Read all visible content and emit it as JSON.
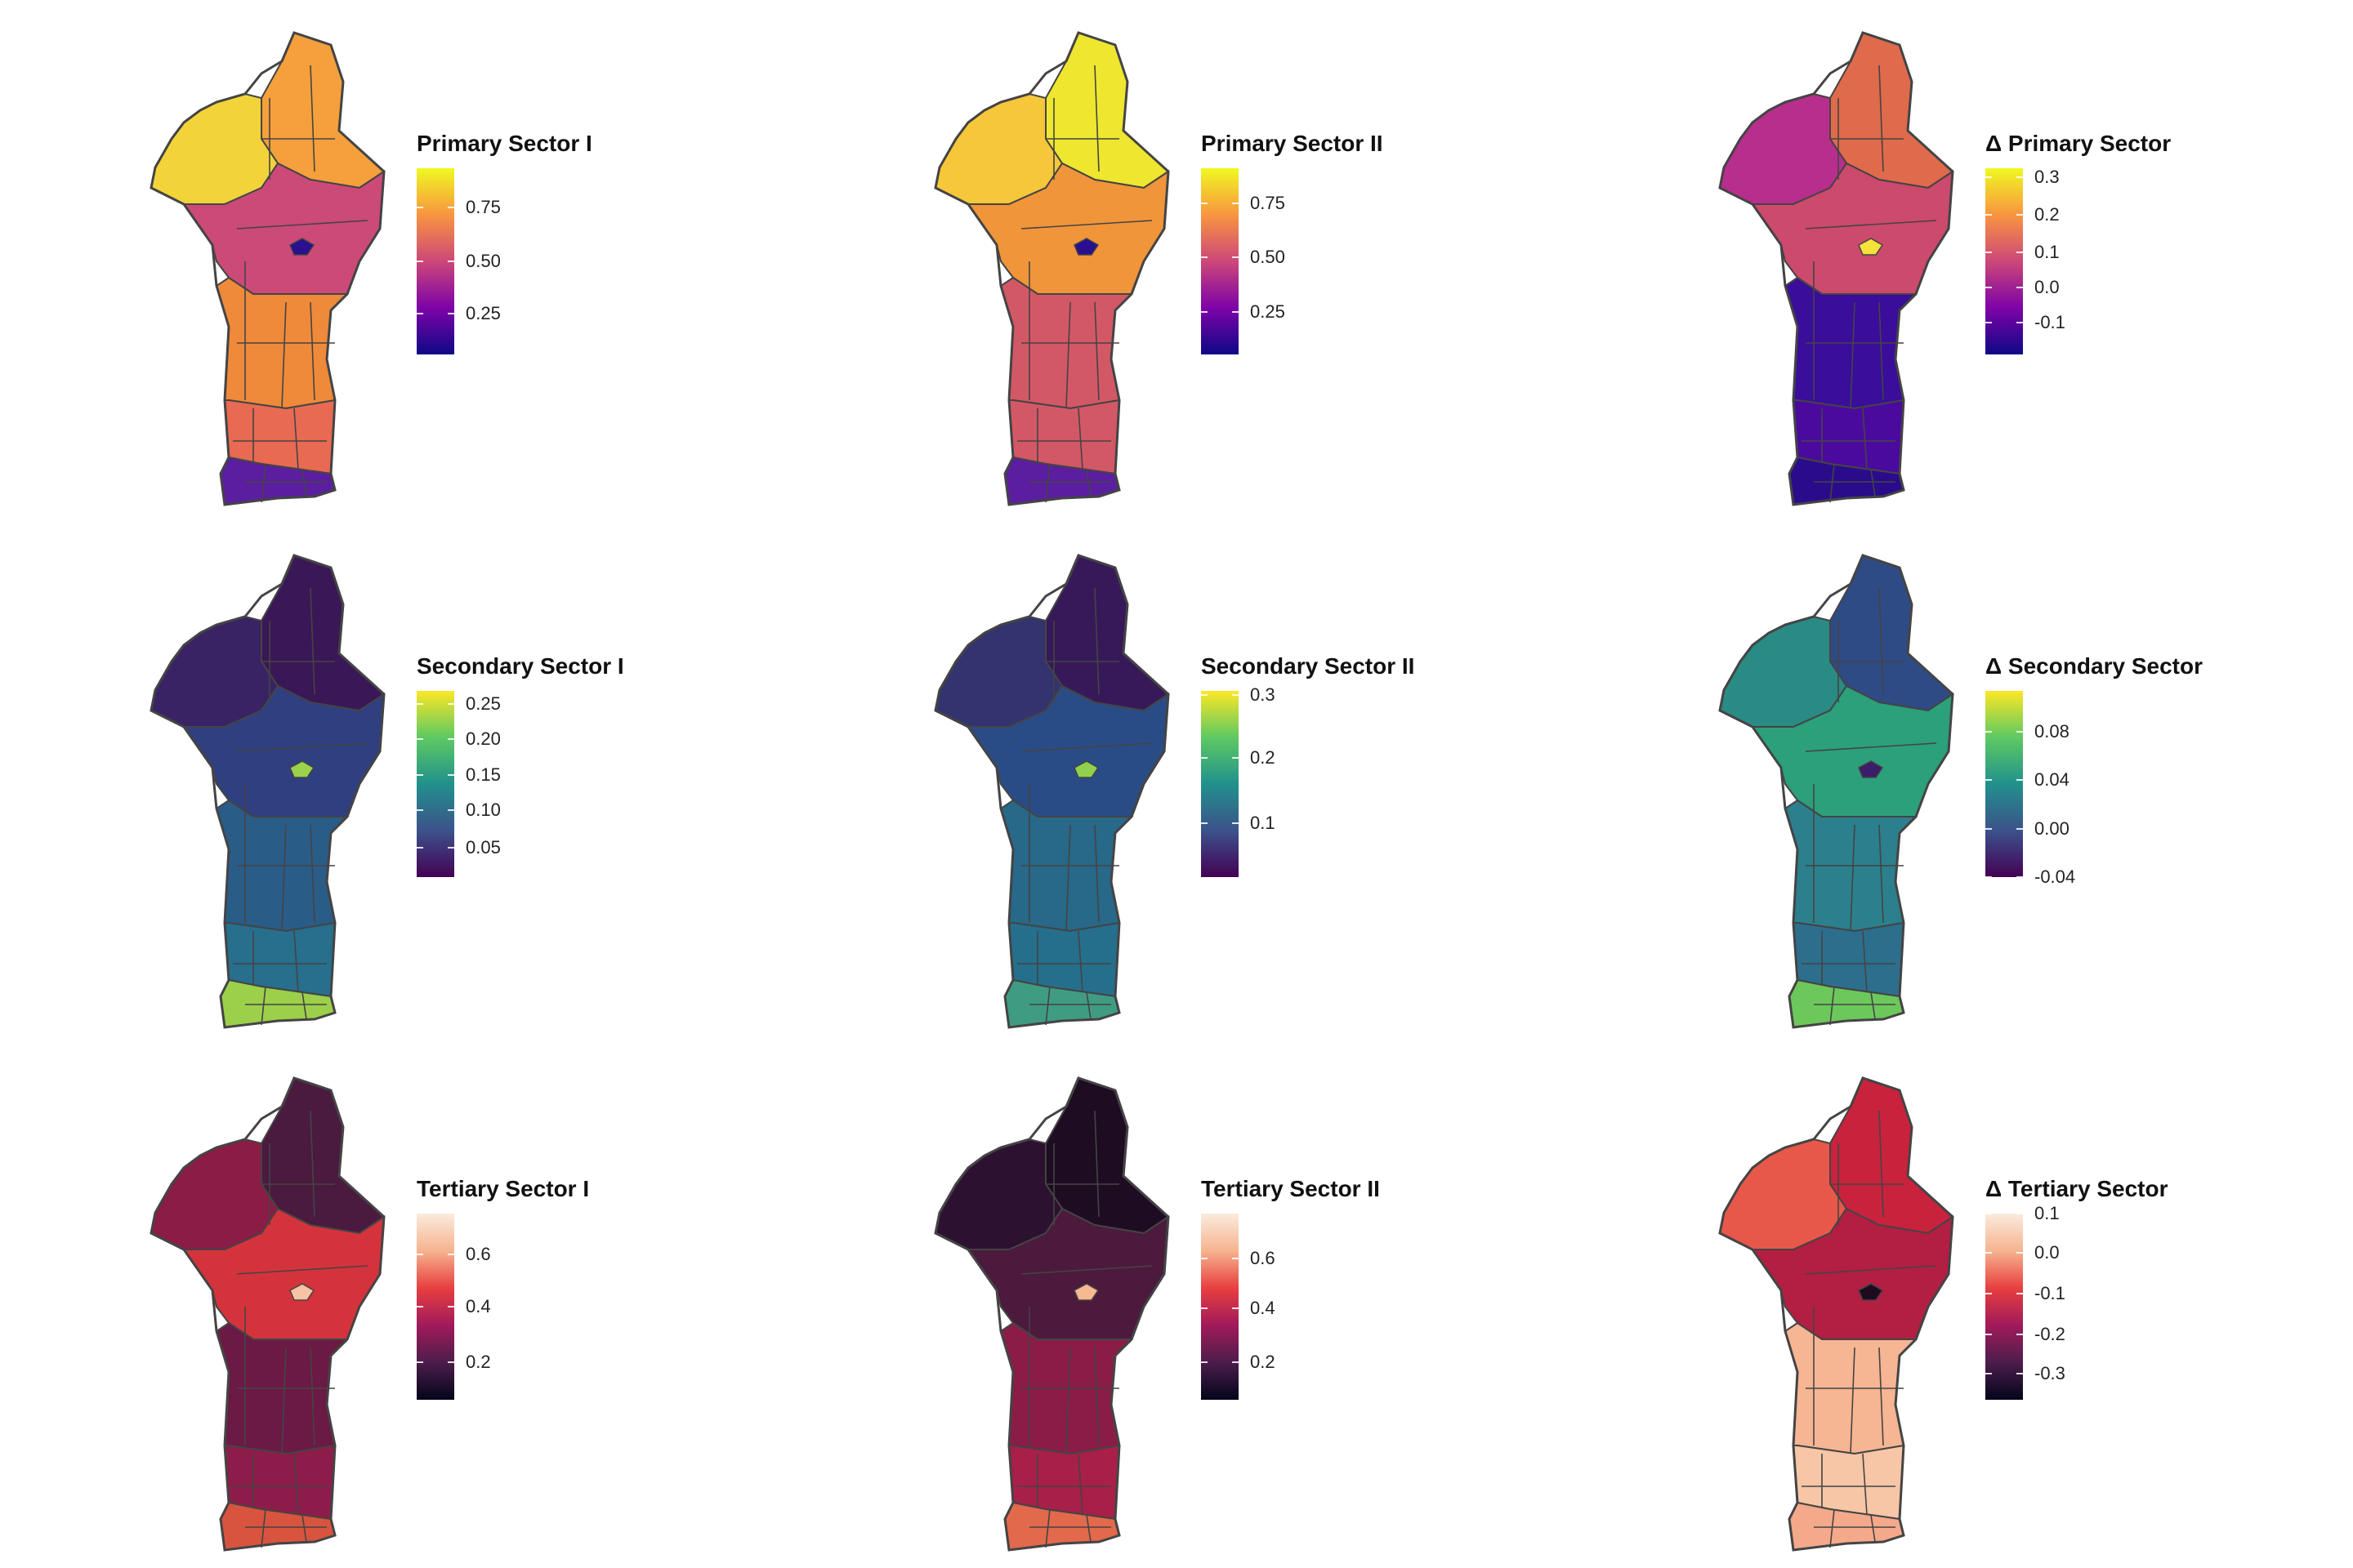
{
  "panels": [
    {
      "id": "primary-1",
      "legend": {
        "title": "Primary Sector I",
        "ticks": [
          {
            "label": "0.75",
            "frac": 0.79
          },
          {
            "label": "0.50",
            "frac": 0.5
          },
          {
            "label": "0.25",
            "frac": 0.22
          }
        ],
        "colors": [
          "#0d0887",
          "#7e03a8",
          "#cc4778",
          "#f89540",
          "#f0f921"
        ]
      },
      "map": {
        "north": "#f5a03c",
        "northwest": "#f2d43a",
        "center": "#cc4a78",
        "midsouth": "#ef8a3b",
        "south": "#e86a52",
        "coast": "#5b1ea0",
        "lake": "#2a0f8f"
      }
    },
    {
      "id": "primary-2",
      "legend": {
        "title": "Primary Sector II",
        "ticks": [
          {
            "label": "0.75",
            "frac": 0.81
          },
          {
            "label": "0.50",
            "frac": 0.52
          },
          {
            "label": "0.25",
            "frac": 0.23
          }
        ],
        "colors": [
          "#0d0887",
          "#7e03a8",
          "#cc4778",
          "#f89540",
          "#f0f921"
        ]
      },
      "map": {
        "north": "#efe62f",
        "northwest": "#f6c73a",
        "center": "#f0953a",
        "midsouth": "#d35866",
        "south": "#d35866",
        "coast": "#5b1ea0",
        "lake": "#2a0f8f"
      }
    },
    {
      "id": "primary-delta",
      "legend": {
        "title": "Δ Primary Sector",
        "ticks": [
          {
            "label": "0.3",
            "frac": 0.95
          },
          {
            "label": "0.2",
            "frac": 0.75
          },
          {
            "label": "0.1",
            "frac": 0.55
          },
          {
            "label": "0.0",
            "frac": 0.36
          },
          {
            "label": "-0.1",
            "frac": 0.17
          }
        ],
        "colors": [
          "#0d0887",
          "#7e03a8",
          "#cc4778",
          "#f89540",
          "#f0f921"
        ]
      },
      "map": {
        "north": "#e06a4c",
        "northwest": "#b82e8c",
        "center": "#cc4a6c",
        "midsouth": "#3a0d9a",
        "south": "#4b0a9e",
        "coast": "#2a0c8a",
        "lake": "#f5e23a"
      }
    },
    {
      "id": "secondary-1",
      "legend": {
        "title": "Secondary Sector I",
        "ticks": [
          {
            "label": "0.25",
            "frac": 0.93
          },
          {
            "label": "0.20",
            "frac": 0.74
          },
          {
            "label": "0.15",
            "frac": 0.55
          },
          {
            "label": "0.10",
            "frac": 0.36
          },
          {
            "label": "0.05",
            "frac": 0.16
          }
        ],
        "colors": [
          "#440154",
          "#3b528b",
          "#21918c",
          "#5ec962",
          "#fde725"
        ]
      },
      "map": {
        "north": "#3a1756",
        "northwest": "#392364",
        "center": "#2f3f80",
        "midsouth": "#2a5c88",
        "south": "#276f8c",
        "coast": "#9ccf4a",
        "lake": "#9bd24b"
      }
    },
    {
      "id": "secondary-2",
      "legend": {
        "title": "Secondary Sector II",
        "ticks": [
          {
            "label": "0.3",
            "frac": 0.98
          },
          {
            "label": "0.2",
            "frac": 0.64
          },
          {
            "label": "0.1",
            "frac": 0.29
          }
        ],
        "colors": [
          "#440154",
          "#3b528b",
          "#21918c",
          "#5ec962",
          "#fde725"
        ]
      },
      "map": {
        "north": "#37195a",
        "northwest": "#33336f",
        "center": "#2a4c86",
        "midsouth": "#286889",
        "south": "#256f8c",
        "coast": "#3f9c83",
        "lake": "#8fd14e"
      }
    },
    {
      "id": "secondary-delta",
      "legend": {
        "title": "Δ Secondary Sector",
        "ticks": [
          {
            "label": "0.08",
            "frac": 0.78
          },
          {
            "label": "0.04",
            "frac": 0.52
          },
          {
            "label": "0.00",
            "frac": 0.26
          },
          {
            "label": "-0.04",
            "frac": 0.0
          }
        ],
        "colors": [
          "#440154",
          "#3b528b",
          "#21918c",
          "#5ec962",
          "#fde725"
        ]
      },
      "map": {
        "north": "#2f4b86",
        "northwest": "#2a8a84",
        "center": "#2ba07a",
        "midsouth": "#2c7f8c",
        "south": "#2d6e8d",
        "coast": "#6cc85a",
        "lake": "#3b1d6a"
      }
    },
    {
      "id": "tertiary-1",
      "legend": {
        "title": "Tertiary Sector I",
        "ticks": [
          {
            "label": "0.6",
            "frac": 0.78
          },
          {
            "label": "0.4",
            "frac": 0.5
          },
          {
            "label": "0.2",
            "frac": 0.2
          }
        ],
        "colors": [
          "#03051a",
          "#4c1d4b",
          "#a11a5b",
          "#e83f3f",
          "#f6b48f",
          "#faebdd"
        ]
      },
      "map": {
        "north": "#4a1a3f",
        "northwest": "#8a1c45",
        "center": "#d5333c",
        "midsouth": "#6a1a44",
        "south": "#8e1c4a",
        "coast": "#d8543e",
        "lake": "#f7c3a4"
      }
    },
    {
      "id": "tertiary-2",
      "legend": {
        "title": "Tertiary Sector II",
        "ticks": [
          {
            "label": "0.6",
            "frac": 0.76
          },
          {
            "label": "0.4",
            "frac": 0.49
          },
          {
            "label": "0.2",
            "frac": 0.2
          }
        ],
        "colors": [
          "#03051a",
          "#4c1d4b",
          "#a11a5b",
          "#e83f3f",
          "#f6b48f",
          "#faebdd"
        ]
      },
      "map": {
        "north": "#1e0c22",
        "northwest": "#2c1130",
        "center": "#4c1a3c",
        "midsouth": "#8a1c47",
        "south": "#a81f4a",
        "coast": "#e2694c",
        "lake": "#f6b990"
      }
    },
    {
      "id": "tertiary-delta",
      "legend": {
        "title": "Δ Tertiary Sector",
        "ticks": [
          {
            "label": "0.1",
            "frac": 1.0
          },
          {
            "label": "0.0",
            "frac": 0.79
          },
          {
            "label": "-0.1",
            "frac": 0.57
          },
          {
            "label": "-0.2",
            "frac": 0.35
          },
          {
            "label": "-0.3",
            "frac": 0.14
          }
        ],
        "colors": [
          "#03051a",
          "#4c1d4b",
          "#a11a5b",
          "#e83f3f",
          "#f6b48f",
          "#faebdd"
        ]
      },
      "map": {
        "north": "#c9223d",
        "northwest": "#e8584a",
        "center": "#b31e43",
        "midsouth": "#f6b593",
        "south": "#f7c6a6",
        "coast": "#f4a98a",
        "lake": "#1e0c1e"
      }
    }
  ]
}
